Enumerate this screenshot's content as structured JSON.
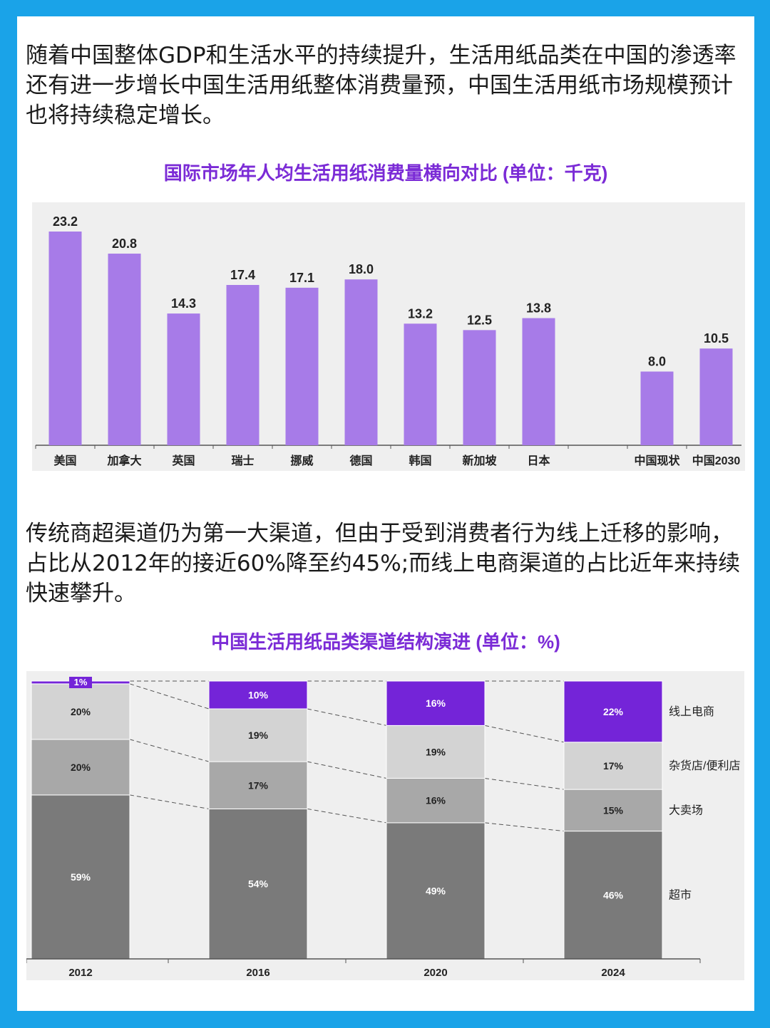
{
  "intro_text": "随着中国整体GDP和生活水平的持续提升，生活用纸品类在中国的渗透率还有进一步增长中国生活用纸整体消费量预，中国生活用纸市场规模预计也将持续稳定增长。",
  "channel_text": "传统商超渠道仍为第一大渠道，但由于受到消费者行为线上迁移的影响，占比从2012年的接近60%降至约45%;而线上电商渠道的占比近年来持续快速攀升。",
  "colors": {
    "border": "#1aa3e8",
    "title": "#7b2bd6",
    "bar": "#a77be8",
    "online": "#7424d8",
    "grocery": "#d3d3d3",
    "hyper": "#a8a8a8",
    "super": "#7a7a7a"
  },
  "chart_data": [
    {
      "type": "bar",
      "title": "国际市场年人均生活用纸消费量横向对比 (单位：千克)",
      "categories": [
        "美国",
        "加拿大",
        "英国",
        "瑞士",
        "挪威",
        "德国",
        "韩国",
        "新加坡",
        "日本",
        "",
        "中国现状",
        "中国2030"
      ],
      "values": [
        23.2,
        20.8,
        14.3,
        17.4,
        17.1,
        18.0,
        13.2,
        12.5,
        13.8,
        null,
        8.0,
        10.5
      ],
      "labels": [
        "23.2",
        "20.8",
        "14.3",
        "17.4",
        "17.1",
        "18.0",
        "13.2",
        "12.5",
        "13.8",
        "",
        "8.0",
        "10.5"
      ],
      "xlabel": "",
      "ylabel": "",
      "ylim": [
        0,
        23.2
      ]
    },
    {
      "type": "bar",
      "stacked": true,
      "title": "中国生活用纸品类渠道结构演进 (单位：%)",
      "categories": [
        "2012",
        "2016",
        "2020",
        "2024"
      ],
      "series": [
        {
          "name": "超市",
          "values": [
            59,
            54,
            49,
            46
          ],
          "labels": [
            "59%",
            "54%",
            "49%",
            "46%"
          ]
        },
        {
          "name": "大卖场",
          "values": [
            20,
            17,
            16,
            15
          ],
          "labels": [
            "20%",
            "17%",
            "16%",
            "15%"
          ]
        },
        {
          "name": "杂货店/便利店",
          "values": [
            20,
            19,
            19,
            17
          ],
          "labels": [
            "20%",
            "19%",
            "19%",
            "17%"
          ]
        },
        {
          "name": "线上电商",
          "values": [
            1,
            10,
            16,
            22
          ],
          "labels": [
            "1%",
            "10%",
            "16%",
            "22%"
          ]
        }
      ],
      "ylim": [
        0,
        100
      ]
    }
  ]
}
